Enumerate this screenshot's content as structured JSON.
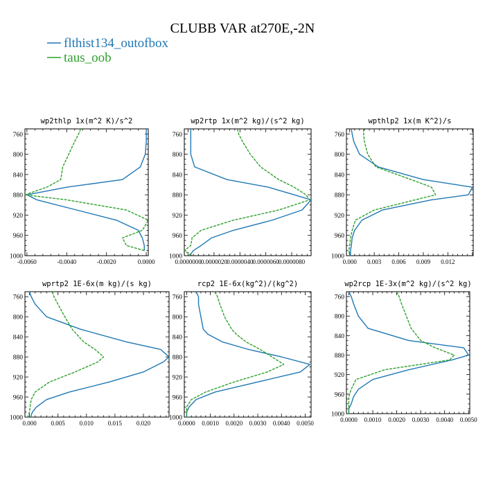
{
  "figure": {
    "title": "CLUBB VAR at270E,-2N",
    "legend": [
      {
        "label": "flthist134_outofbox",
        "color": "#1f77b4",
        "dash": "solid"
      },
      {
        "label": "taus_oob",
        "color": "#2ca02c",
        "dash": "dashed"
      }
    ]
  },
  "chart_data": [
    {
      "type": "line",
      "title": "wp2thlp  1x(m^2 K)/s^2",
      "ylim": [
        1000,
        750
      ],
      "yticks": [
        "760",
        "800",
        "840",
        "880",
        "920",
        "960",
        "1000"
      ],
      "xlim": [
        -0.0061,
        0.0001
      ],
      "xticks": [
        -0.006,
        -0.004,
        -0.002,
        0.0
      ],
      "xticklabels": [
        "-0.0060",
        "-0.0040",
        "-0.0020",
        "0.0000"
      ],
      "levels": [
        750,
        760,
        775,
        800,
        825,
        850,
        865,
        880,
        890,
        910,
        930,
        950,
        965,
        980,
        990
      ],
      "series": [
        {
          "name": "flthist134_outofbox",
          "color": "#1f77b4",
          "dash": "solid",
          "x": [
            0.0,
            0.0,
            0.0,
            -5e-05,
            -0.0003,
            -0.0012,
            -0.004,
            -0.006,
            -0.0055,
            -0.0035,
            -0.0015,
            -0.0004,
            -0.0002,
            -0.0001,
            -0.0001
          ]
        },
        {
          "name": "taus_oob",
          "color": "#2ca02c",
          "dash": "dashed",
          "x": [
            -0.0033,
            -0.0034,
            -0.0036,
            -0.0039,
            -0.0042,
            -0.0043,
            -0.005,
            -0.0061,
            -0.004,
            -0.001,
            0.0001,
            -0.0002,
            -0.0012,
            -0.001,
            -0.0001
          ]
        }
      ]
    },
    {
      "type": "line",
      "title": "wp2rtp  1x(m^2 kg)/(s^2 kg)",
      "ylim": [
        1000,
        750
      ],
      "yticks": [
        "760",
        "800",
        "840",
        "880",
        "920",
        "960",
        "1000"
      ],
      "xlim": [
        -3e-07,
        9.5e-06
      ],
      "xticks": [
        0.0,
        2e-06,
        4e-06,
        6e-06,
        8e-06
      ],
      "xticklabels": [
        "0.0000000",
        "0.0000020",
        "0.0000040",
        "0.0000060",
        "0.0000080"
      ],
      "levels": [
        750,
        760,
        775,
        800,
        825,
        850,
        865,
        880,
        890,
        910,
        930,
        950,
        965,
        980,
        990,
        1000
      ],
      "series": [
        {
          "name": "flthist134_outofbox",
          "color": "#1f77b4",
          "dash": "solid",
          "x": [
            2e-07,
            2e-07,
            2e-07,
            2e-07,
            5e-07,
            3e-06,
            6.2e-06,
            8.2e-06,
            9.5e-06,
            8.8e-06,
            6.5e-06,
            3.5e-06,
            1.8e-06,
            1e-06,
            4e-07,
            1e-07
          ]
        },
        {
          "name": "taus_oob",
          "color": "#2ca02c",
          "dash": "dashed",
          "x": [
            3.8e-06,
            3.9e-06,
            4.2e-06,
            4.8e-06,
            5.6e-06,
            7e-06,
            8.2e-06,
            9.1e-06,
            9.4e-06,
            7e-06,
            3.5e-06,
            1e-06,
            3e-07,
            2e-07,
            -3e-07,
            3e-07
          ]
        }
      ]
    },
    {
      "type": "line",
      "title": "wpthlp2  1x(m K^2)/s",
      "ylim": [
        1000,
        750
      ],
      "yticks": [
        "760",
        "800",
        "840",
        "880",
        "920",
        "960",
        "1000"
      ],
      "xlim": [
        -0.0004,
        0.0151
      ],
      "xticks": [
        0.0,
        0.003,
        0.006,
        0.009,
        0.012
      ],
      "xticklabels": [
        "0.000",
        "0.003",
        "0.006",
        "0.009",
        "0.012"
      ],
      "levels": [
        750,
        760,
        775,
        800,
        825,
        850,
        865,
        880,
        890,
        910,
        930,
        950,
        965,
        980,
        990,
        1000
      ],
      "series": [
        {
          "name": "flthist134_outofbox",
          "color": "#1f77b4",
          "dash": "solid",
          "x": [
            0.0002,
            0.0003,
            0.0005,
            0.0012,
            0.0035,
            0.009,
            0.015,
            0.0145,
            0.01,
            0.004,
            0.0015,
            0.0006,
            0.0003,
            0.0002,
            0.0001,
            0.0001
          ]
        },
        {
          "name": "taus_oob",
          "color": "#2ca02c",
          "dash": "dashed",
          "x": [
            0.0017,
            0.0017,
            0.0018,
            0.0022,
            0.0032,
            0.0075,
            0.01,
            0.0105,
            0.008,
            0.003,
            0.0007,
            0.0003,
            0.0001,
            0.0,
            -0.0001,
            0.0
          ]
        }
      ]
    },
    {
      "type": "line",
      "title": "wprtp2  1E-6x(m kg)/(s kg)",
      "ylim": [
        1000,
        750
      ],
      "yticks": [
        "760",
        "800",
        "840",
        "880",
        "920",
        "960",
        "1000"
      ],
      "xlim": [
        -0.0008,
        0.0245
      ],
      "xticks": [
        0.0,
        0.005,
        0.01,
        0.015,
        0.02
      ],
      "xticklabels": [
        "0.000",
        "0.005",
        "0.010",
        "0.015",
        "0.020"
      ],
      "levels": [
        750,
        760,
        775,
        800,
        825,
        850,
        865,
        880,
        890,
        910,
        930,
        950,
        965,
        980,
        990,
        1000
      ],
      "series": [
        {
          "name": "flthist134_outofbox",
          "color": "#1f77b4",
          "dash": "solid",
          "x": [
            0.0,
            0.0003,
            0.001,
            0.003,
            0.009,
            0.017,
            0.023,
            0.0245,
            0.0235,
            0.02,
            0.014,
            0.007,
            0.003,
            0.0012,
            0.0005,
            0.0002
          ]
        },
        {
          "name": "taus_oob",
          "color": "#2ca02c",
          "dash": "dashed",
          "x": [
            0.004,
            0.0043,
            0.005,
            0.0062,
            0.0075,
            0.0095,
            0.0115,
            0.013,
            0.012,
            0.008,
            0.0035,
            0.001,
            0.0003,
            0.0001,
            0.0,
            -0.0003
          ]
        }
      ]
    },
    {
      "type": "line",
      "title": "rcp2  1E-6x(kg^2)/(kg^2)",
      "ylim": [
        1000,
        750
      ],
      "yticks": [
        "760",
        "800",
        "840",
        "880",
        "920",
        "960",
        "1000"
      ],
      "xlim": [
        -0.0001,
        0.00525
      ],
      "xticks": [
        0.0,
        0.001,
        0.002,
        0.003,
        0.004,
        0.005
      ],
      "xticklabels": [
        "0.0000",
        "0.0010",
        "0.0020",
        "0.0030",
        "0.0040",
        "0.0050"
      ],
      "levels": [
        750,
        760,
        775,
        800,
        825,
        835,
        850,
        865,
        880,
        895,
        910,
        930,
        950,
        965,
        980,
        990,
        1000
      ],
      "series": [
        {
          "name": "flthist134_outofbox",
          "color": "#1f77b4",
          "dash": "solid",
          "x": [
            0.0004,
            0.0005,
            0.0005,
            0.0006,
            0.0007,
            0.0009,
            0.0015,
            0.0026,
            0.004,
            0.0052,
            0.0048,
            0.003,
            0.0012,
            0.0004,
            0.0001,
            0.0,
            0.0
          ]
        },
        {
          "name": "taus_oob",
          "color": "#2ca02c",
          "dash": "dashed",
          "x": [
            0.0012,
            0.0013,
            0.0014,
            0.0016,
            0.0019,
            0.0021,
            0.0025,
            0.0031,
            0.0036,
            0.0041,
            0.0034,
            0.002,
            0.0008,
            0.0002,
            0.0,
            0.0,
            0.0
          ]
        }
      ]
    },
    {
      "type": "line",
      "title": "wp2rcp  1E-3x(m^2 kg)/(s^2 kg)",
      "ylim": [
        1000,
        750
      ],
      "yticks": [
        "760",
        "800",
        "840",
        "880",
        "920",
        "960",
        "1000"
      ],
      "xlim": [
        -0.0001,
        0.00505
      ],
      "xticks": [
        0.0,
        0.001,
        0.002,
        0.003,
        0.004,
        0.005
      ],
      "xticklabels": [
        "0.0000",
        "0.0010",
        "0.0020",
        "0.0030",
        "0.0040",
        "0.0050"
      ],
      "levels": [
        750,
        760,
        775,
        800,
        825,
        850,
        865,
        880,
        890,
        910,
        930,
        950,
        965,
        980,
        990,
        1000
      ],
      "series": [
        {
          "name": "flthist134_outofbox",
          "color": "#1f77b4",
          "dash": "solid",
          "x": [
            0.0,
            0.0001,
            0.0002,
            0.0004,
            0.0008,
            0.0025,
            0.0048,
            0.005,
            0.0043,
            0.0025,
            0.001,
            0.0004,
            0.0002,
            0.0001,
            0.0,
            0.0
          ]
        },
        {
          "name": "taus_oob",
          "color": "#2ca02c",
          "dash": "dashed",
          "x": [
            0.002,
            0.0021,
            0.0022,
            0.0024,
            0.0026,
            0.003,
            0.0036,
            0.0044,
            0.0042,
            0.0015,
            0.0003,
            0.0001,
            0.0,
            0.0,
            0.0,
            0.0
          ]
        }
      ]
    }
  ]
}
